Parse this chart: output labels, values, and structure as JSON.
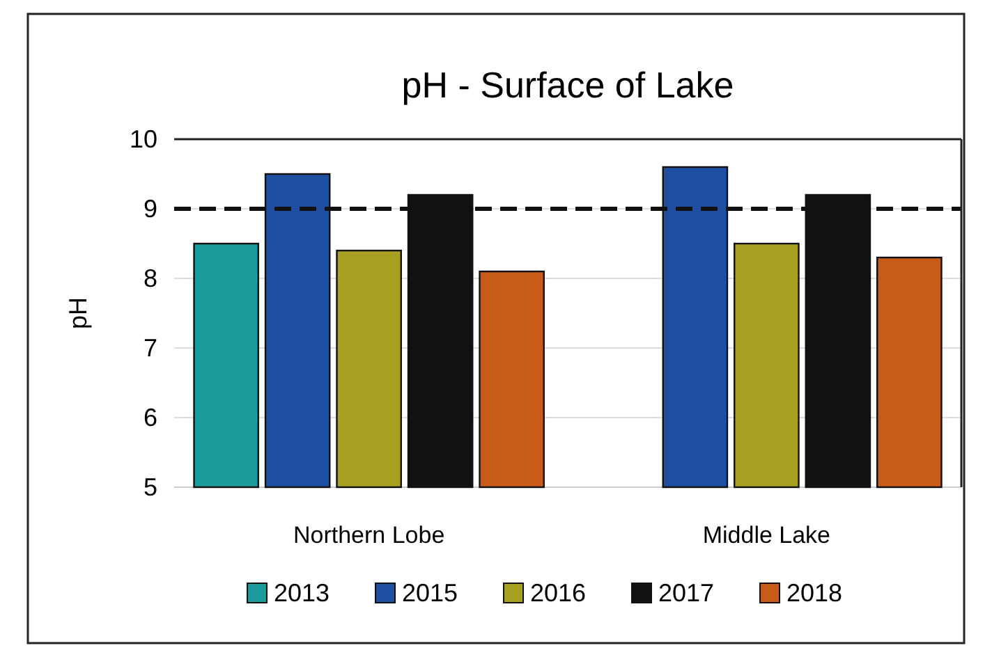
{
  "chart_data": {
    "type": "bar",
    "title": "pH - Surface of Lake",
    "ylabel": "pH",
    "categories": [
      "Northern Lobe",
      "Middle Lake"
    ],
    "series": [
      {
        "name": "2013",
        "color": "#1a9a9a",
        "values": [
          8.5,
          null
        ]
      },
      {
        "name": "2015",
        "color": "#1f4fa0",
        "values": [
          9.5,
          9.6
        ]
      },
      {
        "name": "2016",
        "color": "#a8a020",
        "values": [
          8.4,
          8.5
        ]
      },
      {
        "name": "2017",
        "color": "#111111",
        "values": [
          9.2,
          9.2
        ]
      },
      {
        "name": "2018",
        "color": "#c85a1a",
        "values": [
          8.1,
          8.3
        ]
      }
    ],
    "ylim": [
      5,
      10
    ],
    "yticks": [
      5,
      6,
      7,
      8,
      9,
      10
    ],
    "grid": "y",
    "legend": "bottom",
    "ref_lines": [
      {
        "axis": "y",
        "value": 9,
        "line_style": "dashed",
        "color": "#111111"
      }
    ]
  }
}
